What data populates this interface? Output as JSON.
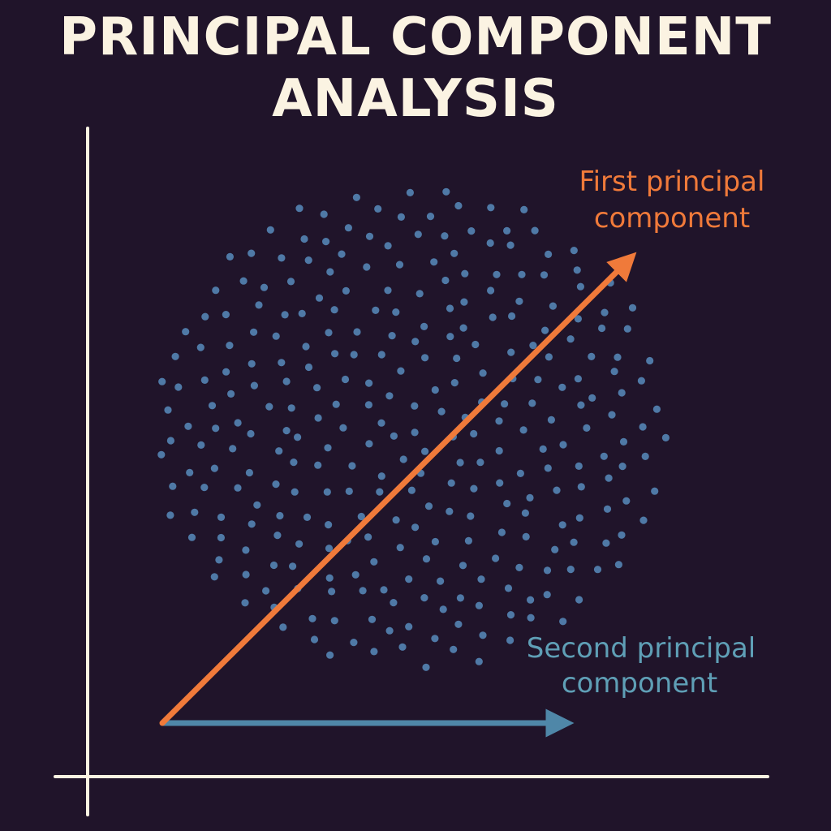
{
  "title": {
    "line1": "PRINCIPAL COMPONENT",
    "line2": "ANALYSIS"
  },
  "components": {
    "first": {
      "label_line1": "First principal",
      "label_line2": "component",
      "color": "#f07a3a"
    },
    "second": {
      "label_line1": "Second principal",
      "label_line2": "component",
      "color": "#5f9fb6"
    }
  },
  "colors": {
    "background": "#20142a",
    "axes": "#fbf3e2",
    "points": "#4f79a6",
    "title": "#fbf3e2"
  }
}
